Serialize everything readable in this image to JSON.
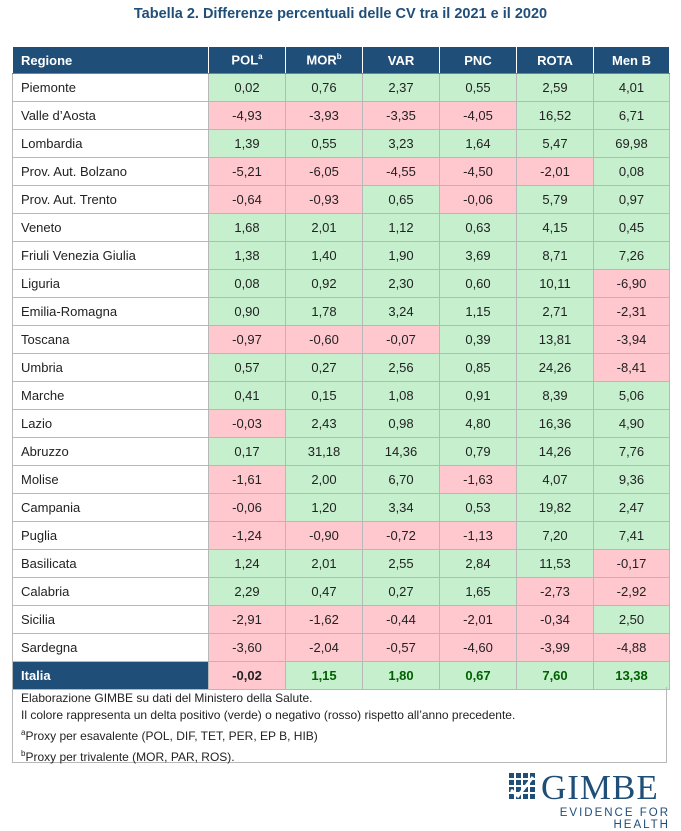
{
  "title": "Tabella 2. Differenze percentuali delle CV tra il 2021 e il 2020",
  "table": {
    "headers": [
      "Regione",
      "POL",
      "MOR",
      "VAR",
      "PNC",
      "ROTA",
      "Men B"
    ],
    "header_sups": [
      "",
      "a",
      "b",
      "",
      "",
      "",
      ""
    ],
    "rows": [
      {
        "region": "Piemonte",
        "values": [
          "0,02",
          "0,76",
          "2,37",
          "0,55",
          "2,59",
          "4,01"
        ]
      },
      {
        "region": "Valle d’Aosta",
        "values": [
          "-4,93",
          "-3,93",
          "-3,35",
          "-4,05",
          "16,52",
          "6,71"
        ]
      },
      {
        "region": "Lombardia",
        "values": [
          "1,39",
          "0,55",
          "3,23",
          "1,64",
          "5,47",
          "69,98"
        ]
      },
      {
        "region": "Prov. Aut. Bolzano",
        "values": [
          "-5,21",
          "-6,05",
          "-4,55",
          "-4,50",
          "-2,01",
          "0,08"
        ]
      },
      {
        "region": "Prov. Aut. Trento",
        "values": [
          "-0,64",
          "-0,93",
          "0,65",
          "-0,06",
          "5,79",
          "0,97"
        ]
      },
      {
        "region": "Veneto",
        "values": [
          "1,68",
          "2,01",
          "1,12",
          "0,63",
          "4,15",
          "0,45"
        ]
      },
      {
        "region": "Friuli Venezia Giulia",
        "values": [
          "1,38",
          "1,40",
          "1,90",
          "3,69",
          "8,71",
          "7,26"
        ]
      },
      {
        "region": "Liguria",
        "values": [
          "0,08",
          "0,92",
          "2,30",
          "0,60",
          "10,11",
          "-6,90"
        ]
      },
      {
        "region": "Emilia-Romagna",
        "values": [
          "0,90",
          "1,78",
          "3,24",
          "1,15",
          "2,71",
          "-2,31"
        ]
      },
      {
        "region": "Toscana",
        "values": [
          "-0,97",
          "-0,60",
          "-0,07",
          "0,39",
          "13,81",
          "-3,94"
        ]
      },
      {
        "region": "Umbria",
        "values": [
          "0,57",
          "0,27",
          "2,56",
          "0,85",
          "24,26",
          "-8,41"
        ]
      },
      {
        "region": "Marche",
        "values": [
          "0,41",
          "0,15",
          "1,08",
          "0,91",
          "8,39",
          "5,06"
        ]
      },
      {
        "region": "Lazio",
        "values": [
          "-0,03",
          "2,43",
          "0,98",
          "4,80",
          "16,36",
          "4,90"
        ]
      },
      {
        "region": "Abruzzo",
        "values": [
          "0,17",
          "31,18",
          "14,36",
          "0,79",
          "14,26",
          "7,76"
        ]
      },
      {
        "region": "Molise",
        "values": [
          "-1,61",
          "2,00",
          "6,70",
          "-1,63",
          "4,07",
          "9,36"
        ]
      },
      {
        "region": "Campania",
        "values": [
          "-0,06",
          "1,20",
          "3,34",
          "0,53",
          "19,82",
          "2,47"
        ]
      },
      {
        "region": "Puglia",
        "values": [
          "-1,24",
          "-0,90",
          "-0,72",
          "-1,13",
          "7,20",
          "7,41"
        ]
      },
      {
        "region": "Basilicata",
        "values": [
          "1,24",
          "2,01",
          "2,55",
          "2,84",
          "11,53",
          "-0,17"
        ]
      },
      {
        "region": "Calabria",
        "values": [
          "2,29",
          "0,47",
          "0,27",
          "1,65",
          "-2,73",
          "-2,92"
        ]
      },
      {
        "region": "Sicilia",
        "values": [
          "-2,91",
          "-1,62",
          "-0,44",
          "-2,01",
          "-0,34",
          "2,50"
        ]
      },
      {
        "region": "Sardegna",
        "values": [
          "-3,60",
          "-2,04",
          "-0,57",
          "-4,60",
          "-3,99",
          "-4,88"
        ]
      }
    ],
    "total": {
      "region": "Italia",
      "values": [
        "-0,02",
        "1,15",
        "1,80",
        "0,67",
        "7,60",
        "13,38"
      ]
    }
  },
  "notes": {
    "line1": "Elaborazione GIMBE su dati del Ministero della Salute.",
    "line2": "Il colore rappresenta un delta positivo (verde) o negativo (rosso) rispetto all’anno precedente.",
    "line3_sup": "a",
    "line3": "Proxy per esavalente (POL, DIF, TET, PER, EP B, HIB)",
    "line4_sup": "b",
    "line4": "Proxy per trivalente (MOR, PAR, ROS)."
  },
  "logo": {
    "wordmark": "GIMBE",
    "tagline": "EVIDENCE FOR HEALTH"
  },
  "colors": {
    "header_bg": "#1f4e79",
    "positive": "#c6efce",
    "negative": "#ffc7ce"
  }
}
